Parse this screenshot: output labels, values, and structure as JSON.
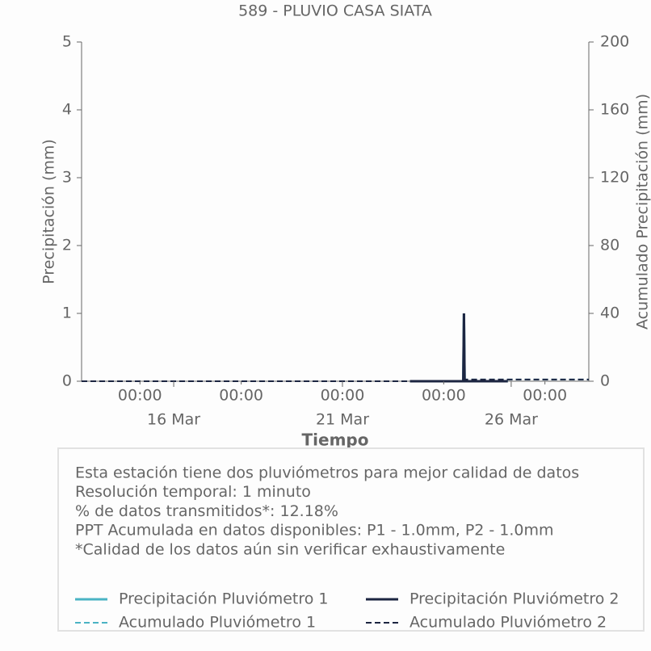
{
  "chart_data": {
    "type": "line",
    "title": "589 - PLUVIO CASA SIATA",
    "xlabel": "Tiempo",
    "ylabel": "Precipitación (mm)",
    "y2label": "Acumulado Precipitación (mm)",
    "xlim": [
      13.27,
      28.3
    ],
    "xticks": [
      {
        "value": 15,
        "label": "00:00"
      },
      {
        "value": 18,
        "label": "00:00"
      },
      {
        "value": 21,
        "label": "00:00"
      },
      {
        "value": 24,
        "label": "00:00"
      },
      {
        "value": 27,
        "label": "00:00"
      }
    ],
    "xticks_major": [
      {
        "value": 16,
        "label": "16 Mar"
      },
      {
        "value": 21,
        "label": "21 Mar"
      },
      {
        "value": 26,
        "label": "26 Mar"
      }
    ],
    "ylim": [
      0,
      5
    ],
    "yticks": [
      0,
      1,
      2,
      3,
      4,
      5
    ],
    "y2lim": [
      0,
      200
    ],
    "y2ticks": [
      0,
      40,
      80,
      120,
      160,
      200
    ],
    "series": [
      {
        "name": "Precipitación Pluviómetro 1",
        "color": "#4ab3c4",
        "linestyle": "solid",
        "x": [
          23.0,
          24.58,
          24.6,
          24.62,
          25.9
        ],
        "values": [
          0,
          0,
          1.0,
          0,
          0
        ]
      },
      {
        "name": "Acumulado Pluviómetro 1",
        "color": "#4ab3c4",
        "linestyle": "dashed",
        "axis": "y2",
        "x": [
          13.27,
          24.6,
          24.62,
          28.3
        ],
        "values": [
          0,
          0,
          1.0,
          1.0
        ]
      },
      {
        "name": "Precipitación Pluviómetro 2",
        "color": "#1c2541",
        "linestyle": "solid",
        "x": [
          23.0,
          24.58,
          24.6,
          24.62,
          25.9
        ],
        "values": [
          0,
          0,
          1.0,
          0,
          0
        ]
      },
      {
        "name": "Acumulado Pluviómetro 2",
        "color": "#1c2541",
        "linestyle": "dashed",
        "axis": "y2",
        "x": [
          13.27,
          24.6,
          24.62,
          28.3
        ],
        "values": [
          0,
          0,
          1.0,
          1.0
        ]
      }
    ],
    "annotations": [
      "Esta estación tiene dos pluviómetros para mejor calidad de datos",
      "Resolución temporal: 1 minuto",
      "% de datos transmitidos*: 12.18%",
      "PPT Acumulada en datos disponibles: P1 - 1.0mm, P2 - 1.0mm",
      "*Calidad de los datos aún sin verificar exhaustivamente"
    ]
  }
}
